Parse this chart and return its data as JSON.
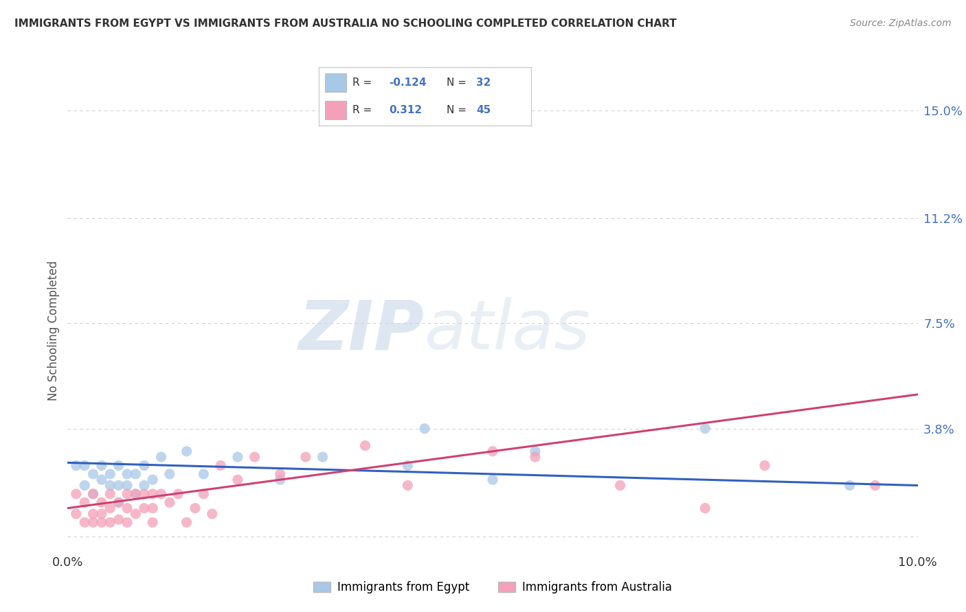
{
  "title": "IMMIGRANTS FROM EGYPT VS IMMIGRANTS FROM AUSTRALIA NO SCHOOLING COMPLETED CORRELATION CHART",
  "source": "Source: ZipAtlas.com",
  "ylabel": "No Schooling Completed",
  "xlim": [
    0.0,
    0.1
  ],
  "ylim": [
    -0.005,
    0.15
  ],
  "yticks": [
    0.0,
    0.038,
    0.075,
    0.112,
    0.15
  ],
  "ytick_labels": [
    "",
    "3.8%",
    "7.5%",
    "11.2%",
    "15.0%"
  ],
  "xticks": [
    0.0,
    0.02,
    0.04,
    0.06,
    0.08,
    0.1
  ],
  "xtick_labels": [
    "0.0%",
    "",
    "",
    "",
    "",
    "10.0%"
  ],
  "legend_egypt": "Immigrants from Egypt",
  "legend_australia": "Immigrants from Australia",
  "egypt_R": -0.124,
  "egypt_N": 32,
  "australia_R": 0.312,
  "australia_N": 45,
  "egypt_color": "#a8c8e8",
  "australia_color": "#f4a0b8",
  "egypt_line_color": "#3060c0",
  "australia_line_color": "#d04070",
  "watermark_zip": "ZIP",
  "watermark_atlas": "atlas",
  "background_color": "#ffffff",
  "egypt_x": [
    0.001,
    0.002,
    0.002,
    0.003,
    0.003,
    0.004,
    0.004,
    0.005,
    0.005,
    0.006,
    0.006,
    0.006,
    0.007,
    0.007,
    0.008,
    0.008,
    0.009,
    0.009,
    0.01,
    0.011,
    0.012,
    0.014,
    0.016,
    0.02,
    0.025,
    0.03,
    0.04,
    0.042,
    0.05,
    0.055,
    0.075,
    0.092
  ],
  "egypt_y": [
    0.025,
    0.025,
    0.018,
    0.022,
    0.015,
    0.025,
    0.02,
    0.022,
    0.018,
    0.025,
    0.018,
    0.012,
    0.022,
    0.018,
    0.022,
    0.015,
    0.025,
    0.018,
    0.02,
    0.028,
    0.022,
    0.03,
    0.022,
    0.028,
    0.02,
    0.028,
    0.025,
    0.038,
    0.02,
    0.03,
    0.038,
    0.018
  ],
  "australia_x": [
    0.001,
    0.001,
    0.002,
    0.002,
    0.003,
    0.003,
    0.003,
    0.004,
    0.004,
    0.004,
    0.005,
    0.005,
    0.005,
    0.006,
    0.006,
    0.007,
    0.007,
    0.007,
    0.008,
    0.008,
    0.009,
    0.009,
    0.01,
    0.01,
    0.01,
    0.011,
    0.012,
    0.013,
    0.014,
    0.015,
    0.016,
    0.017,
    0.018,
    0.02,
    0.022,
    0.025,
    0.028,
    0.035,
    0.04,
    0.05,
    0.055,
    0.065,
    0.075,
    0.082,
    0.095
  ],
  "australia_y": [
    0.015,
    0.008,
    0.012,
    0.005,
    0.015,
    0.008,
    0.005,
    0.012,
    0.008,
    0.005,
    0.015,
    0.01,
    0.005,
    0.012,
    0.006,
    0.015,
    0.01,
    0.005,
    0.015,
    0.008,
    0.015,
    0.01,
    0.015,
    0.01,
    0.005,
    0.015,
    0.012,
    0.015,
    0.005,
    0.01,
    0.015,
    0.008,
    0.025,
    0.02,
    0.028,
    0.022,
    0.028,
    0.032,
    0.018,
    0.03,
    0.028,
    0.018,
    0.01,
    0.025,
    0.018
  ],
  "grid_color": "#d0d0d0"
}
